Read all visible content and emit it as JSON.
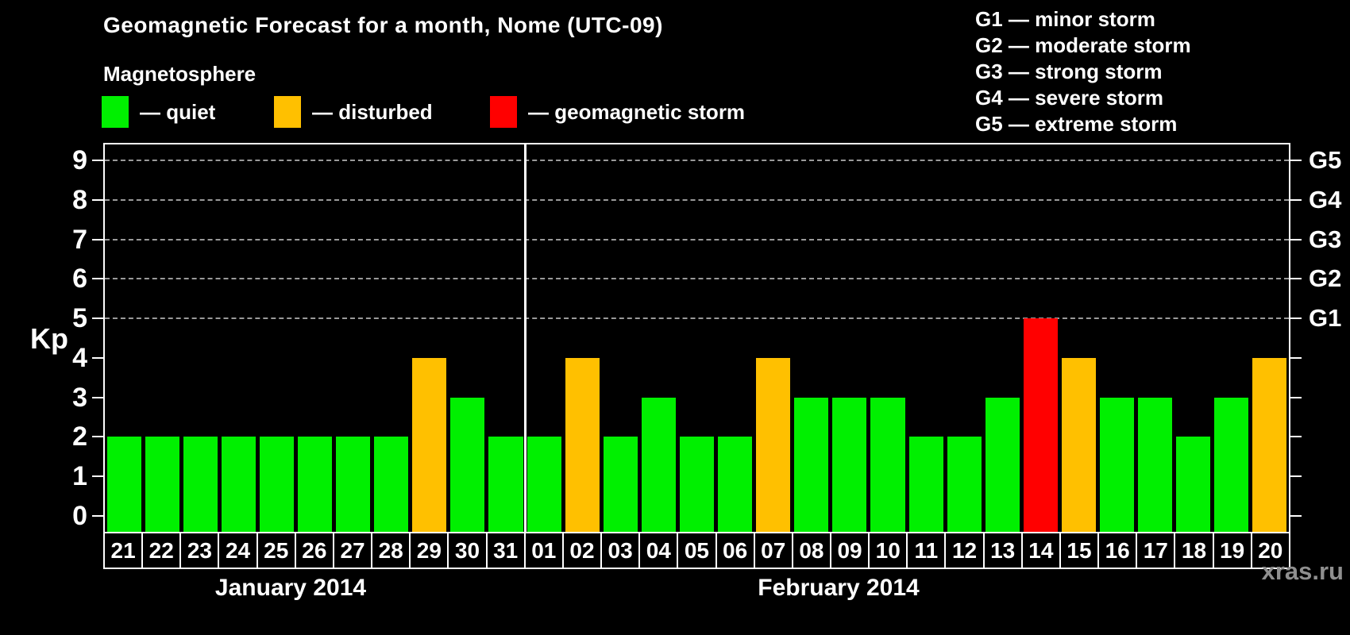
{
  "title": "Geomagnetic Forecast for a month, Nome (UTC-09)",
  "subtitle": "Magnetosphere",
  "watermark": "xras.ru",
  "legend": [
    {
      "label": "— quiet",
      "status": "quiet",
      "color": "#00f000"
    },
    {
      "label": "— disturbed",
      "status": "disturbed",
      "color": "#ffc000"
    },
    {
      "label": "— geomagnetic storm",
      "status": "storm",
      "color": "#ff0000"
    }
  ],
  "g_legend": [
    "G1 — minor storm",
    "G2 — moderate storm",
    "G3 — strong storm",
    "G4 — severe storm",
    "G5 — extreme storm"
  ],
  "chart_data": {
    "type": "bar",
    "title": "Geomagnetic Forecast for a month, Nome (UTC-09)",
    "xlabel": "",
    "ylabel": "Kp",
    "ylim": [
      -0.4,
      9.4
    ],
    "yticks": [
      0,
      1,
      2,
      3,
      4,
      5,
      6,
      7,
      8,
      9
    ],
    "gridlines_at": [
      5,
      6,
      7,
      8,
      9
    ],
    "grid": "dashed-horizontal-at-storm-levels",
    "legend_position": "top",
    "right_axis": [
      {
        "kp": 5,
        "label": "G1"
      },
      {
        "kp": 6,
        "label": "G2"
      },
      {
        "kp": 7,
        "label": "G3"
      },
      {
        "kp": 8,
        "label": "G4"
      },
      {
        "kp": 9,
        "label": "G5"
      }
    ],
    "status_colors": {
      "quiet": "#00f000",
      "disturbed": "#ffc000",
      "storm": "#ff0000"
    },
    "months": [
      {
        "label": "January 2014",
        "days": [
          {
            "day": "21",
            "kp": 2,
            "status": "quiet"
          },
          {
            "day": "22",
            "kp": 2,
            "status": "quiet"
          },
          {
            "day": "23",
            "kp": 2,
            "status": "quiet"
          },
          {
            "day": "24",
            "kp": 2,
            "status": "quiet"
          },
          {
            "day": "25",
            "kp": 2,
            "status": "quiet"
          },
          {
            "day": "26",
            "kp": 2,
            "status": "quiet"
          },
          {
            "day": "27",
            "kp": 2,
            "status": "quiet"
          },
          {
            "day": "28",
            "kp": 2,
            "status": "quiet"
          },
          {
            "day": "29",
            "kp": 4,
            "status": "disturbed"
          },
          {
            "day": "30",
            "kp": 3,
            "status": "quiet"
          },
          {
            "day": "31",
            "kp": 2,
            "status": "quiet"
          }
        ]
      },
      {
        "label": "February 2014",
        "days": [
          {
            "day": "01",
            "kp": 2,
            "status": "quiet"
          },
          {
            "day": "02",
            "kp": 4,
            "status": "disturbed"
          },
          {
            "day": "03",
            "kp": 2,
            "status": "quiet"
          },
          {
            "day": "04",
            "kp": 3,
            "status": "quiet"
          },
          {
            "day": "05",
            "kp": 2,
            "status": "quiet"
          },
          {
            "day": "06",
            "kp": 2,
            "status": "quiet"
          },
          {
            "day": "07",
            "kp": 4,
            "status": "disturbed"
          },
          {
            "day": "08",
            "kp": 3,
            "status": "quiet"
          },
          {
            "day": "09",
            "kp": 3,
            "status": "quiet"
          },
          {
            "day": "10",
            "kp": 3,
            "status": "quiet"
          },
          {
            "day": "11",
            "kp": 2,
            "status": "quiet"
          },
          {
            "day": "12",
            "kp": 2,
            "status": "quiet"
          },
          {
            "day": "13",
            "kp": 3,
            "status": "quiet"
          },
          {
            "day": "14",
            "kp": 5,
            "status": "storm"
          },
          {
            "day": "15",
            "kp": 4,
            "status": "disturbed"
          },
          {
            "day": "16",
            "kp": 3,
            "status": "quiet"
          },
          {
            "day": "17",
            "kp": 3,
            "status": "quiet"
          },
          {
            "day": "18",
            "kp": 2,
            "status": "quiet"
          },
          {
            "day": "19",
            "kp": 3,
            "status": "quiet"
          },
          {
            "day": "20",
            "kp": 4,
            "status": "disturbed"
          }
        ]
      }
    ]
  }
}
